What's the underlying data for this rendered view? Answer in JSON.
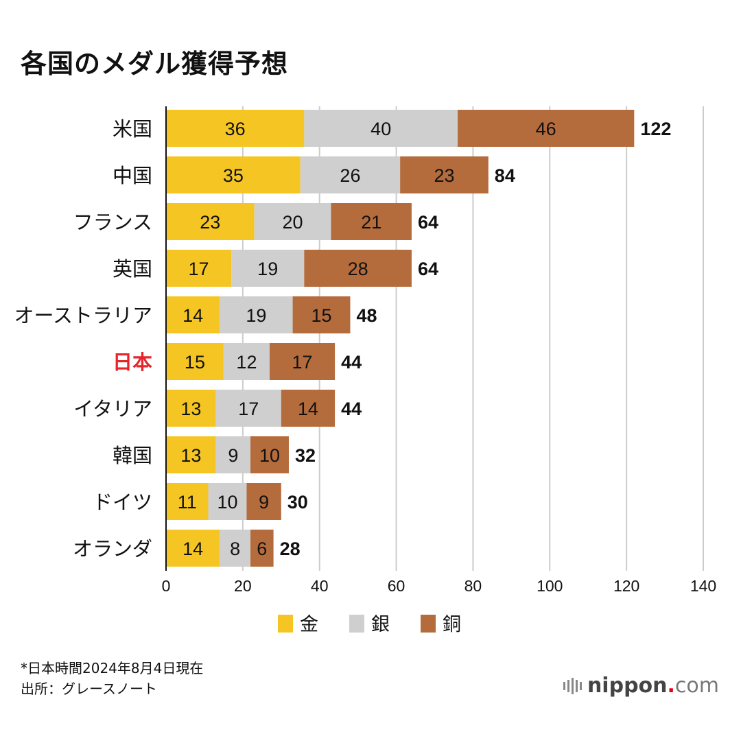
{
  "title": "各国のメダル獲得予想",
  "notes": {
    "line1": "*日本時間2024年8月4日現在",
    "line2": "出所：グレースノート"
  },
  "logo": {
    "brand": "nippon",
    "dot": ".",
    "suffix": "com"
  },
  "colors": {
    "gold": "#f5c623",
    "silver": "#cfcfcf",
    "bronze": "#b46c3c",
    "highlight": "#e8242b",
    "gridline": "#cccccc"
  },
  "chart_data": {
    "type": "bar",
    "orientation": "horizontal",
    "stacked": true,
    "title": "各国のメダル獲得予想",
    "categories": [
      "米国",
      "中国",
      "フランス",
      "英国",
      "オーストラリア",
      "日本",
      "イタリア",
      "韓国",
      "ドイツ",
      "オランダ"
    ],
    "highlight_category": "日本",
    "series": [
      {
        "name": "金",
        "color": "#f5c623",
        "values": [
          36,
          35,
          23,
          17,
          14,
          15,
          13,
          13,
          11,
          14
        ]
      },
      {
        "name": "銀",
        "color": "#cfcfcf",
        "values": [
          40,
          26,
          20,
          19,
          19,
          12,
          17,
          9,
          10,
          8
        ]
      },
      {
        "name": "銅",
        "color": "#b46c3c",
        "values": [
          46,
          23,
          21,
          28,
          15,
          17,
          14,
          10,
          9,
          6
        ]
      }
    ],
    "totals": [
      122,
      84,
      64,
      64,
      48,
      44,
      44,
      32,
      30,
      28
    ],
    "xlim": [
      0,
      140
    ],
    "xticks": [
      0,
      20,
      40,
      60,
      80,
      100,
      120,
      140
    ],
    "grid": true,
    "legend": "bottom-center"
  }
}
